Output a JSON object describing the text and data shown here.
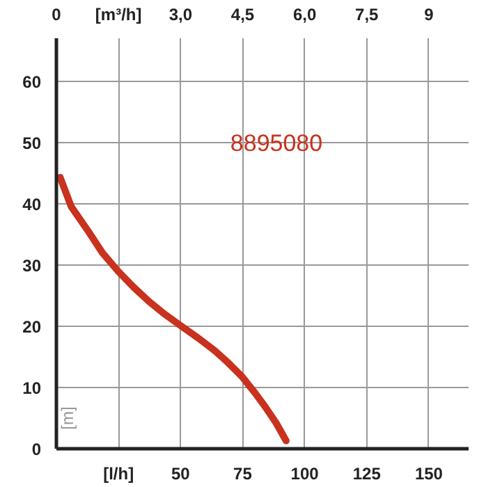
{
  "chart_data": {
    "type": "line",
    "ylabel": "[m]",
    "x": [
      1.5,
      6,
      13,
      18.5,
      24.8,
      31,
      37.4,
      43.5,
      50,
      57,
      63.5,
      69,
      74.7,
      80,
      84,
      88.5,
      92.5
    ],
    "series": [
      {
        "color": "#c8321e",
        "values": [
          44.3,
          39.5,
          35.4,
          32,
          29,
          26.4,
          24,
          22,
          20.1,
          18.1,
          16.1,
          14.1,
          11.8,
          9.1,
          6.9,
          4.2,
          1.3
        ]
      }
    ],
    "xlim": [
      0,
      166
    ],
    "ylim": [
      0,
      67
    ],
    "xticks": [
      {
        "value": 25,
        "label": "[l/h]"
      },
      50,
      75,
      100,
      125,
      150
    ],
    "yticks": [
      0,
      10,
      20,
      30,
      40,
      50,
      60
    ],
    "x2lim": [
      0,
      9.96
    ],
    "x2ticks": [
      0,
      {
        "value": 1.5,
        "label": "[m³/h]"
      },
      {
        "value": 3.0,
        "label": "3,0"
      },
      {
        "value": 4.5,
        "label": "4,5"
      },
      {
        "value": 6.0,
        "label": "6,0"
      },
      {
        "value": 7.5,
        "label": "7,5"
      },
      9
    ],
    "annotations": [
      "8895080"
    ],
    "grid": true,
    "marker": "none",
    "line_style": "solid"
  }
}
